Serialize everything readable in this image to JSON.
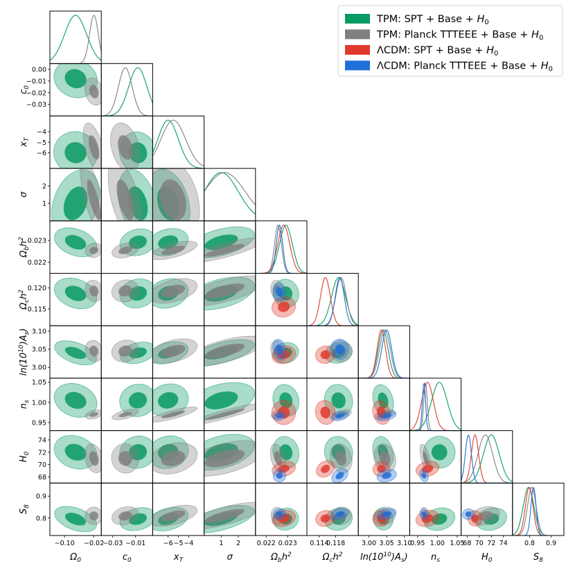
{
  "chart_data": {
    "type": "triangle",
    "description": "",
    "colors": {
      "tpm_spt": "#0a9a63",
      "tpm_planck": "#808080",
      "lcdm_spt": "#e03a2e",
      "lcdm_planck": "#1f6fd8"
    },
    "legend": [
      {
        "key": "tpm_spt",
        "label_plain": "TPM: SPT + Base + ",
        "label_sym": "H",
        "label_sub": "0"
      },
      {
        "key": "tpm_planck",
        "label_plain": "TPM: Planck TTTEEE + Base + ",
        "label_sym": "H",
        "label_sub": "0"
      },
      {
        "key": "lcdm_spt",
        "label_plain": "ΛCDM: SPT + Base + ",
        "label_sym": "H",
        "label_sub": "0"
      },
      {
        "key": "lcdm_planck",
        "label_plain": "ΛCDM: Planck TTTEEE + Base + ",
        "label_sym": "H",
        "label_sub": "0"
      }
    ],
    "parameters": [
      {
        "name": "Omega_0",
        "label_main": "Ω",
        "label_sub": "0",
        "label_sup": "",
        "label_tail": "",
        "range": [
          -0.14,
          0.0
        ],
        "ticks": [
          {
            "v": -0.1,
            "t": "−0.10"
          },
          {
            "v": -0.02,
            "t": "−0.02"
          }
        ],
        "ticks_y": [],
        "center": {
          "tpm_spt": -0.07,
          "tpm_planck": -0.02,
          "lcdm_spt": null,
          "lcdm_planck": null
        }
      },
      {
        "name": "c_0",
        "label_main": "c",
        "label_sub": "0",
        "label_sup": "",
        "label_tail": "",
        "range": [
          -0.04,
          0.005
        ],
        "ticks": [
          {
            "v": -0.03,
            "t": "−0.03"
          },
          {
            "v": -0.01,
            "t": "−0.01"
          }
        ],
        "ticks_y": [
          {
            "v": 0.0,
            "t": "0.00"
          },
          {
            "v": -0.01,
            "t": "−0.01"
          },
          {
            "v": -0.02,
            "t": "−0.02"
          },
          {
            "v": -0.03,
            "t": "−0.03"
          }
        ],
        "center": {
          "tpm_spt": -0.008,
          "tpm_planck": -0.019,
          "lcdm_spt": null,
          "lcdm_planck": null
        }
      },
      {
        "name": "x_T",
        "label_main": "x",
        "label_sub": "T",
        "label_sup": "",
        "label_tail": "",
        "range": [
          -7.5,
          -2.5
        ],
        "ticks": [
          {
            "v": -6,
            "t": "−6"
          },
          {
            "v": -5,
            "t": "−5"
          },
          {
            "v": -4,
            "t": "−4"
          }
        ],
        "ticks_y": [
          {
            "v": -4,
            "t": "−4"
          },
          {
            "v": -5,
            "t": "−5"
          },
          {
            "v": -6,
            "t": "−6"
          }
        ],
        "center": {
          "tpm_spt": -6.0,
          "tpm_planck": -5.5,
          "lcdm_spt": null,
          "lcdm_planck": null
        }
      },
      {
        "name": "sigma",
        "label_main": "σ",
        "label_sub": "",
        "label_sup": "",
        "label_tail": "",
        "range": [
          0.0,
          3.0
        ],
        "ticks": [
          {
            "v": 1,
            "t": "1"
          },
          {
            "v": 2,
            "t": "2"
          }
        ],
        "ticks_y": [
          {
            "v": 1,
            "t": "1"
          },
          {
            "v": 2,
            "t": "2"
          }
        ],
        "center": {
          "tpm_spt": 1.0,
          "tpm_planck": 1.2,
          "lcdm_spt": null,
          "lcdm_planck": null
        }
      },
      {
        "name": "omega_b",
        "label_main": "Ω",
        "label_sub": "b",
        "label_sup": "2",
        "label_tail": "h",
        "range": [
          0.0215,
          0.0239
        ],
        "ticks": [
          {
            "v": 0.022,
            "t": "0.022"
          },
          {
            "v": 0.023,
            "t": "0.023"
          }
        ],
        "ticks_y": [
          {
            "v": 0.023,
            "t": "0.023"
          },
          {
            "v": 0.022,
            "t": "0.022"
          }
        ],
        "center": {
          "tpm_spt": 0.02292,
          "tpm_planck": 0.02255,
          "lcdm_spt": 0.02282,
          "lcdm_planck": 0.02262
        }
      },
      {
        "name": "omega_c",
        "label_main": "Ω",
        "label_sub": "c",
        "label_sup": "2",
        "label_tail": "h",
        "range": [
          0.111,
          0.1235
        ],
        "ticks": [
          {
            "v": 0.114,
            "t": "0.114"
          },
          {
            "v": 0.118,
            "t": "0.118"
          }
        ],
        "ticks_y": [
          {
            "v": 0.12,
            "t": "0.120"
          },
          {
            "v": 0.115,
            "t": "0.115"
          }
        ],
        "center": {
          "tpm_spt": 0.1187,
          "tpm_planck": 0.1193,
          "lcdm_spt": 0.1155,
          "lcdm_planck": 0.119
        }
      },
      {
        "name": "ln10As",
        "label_main": "ln(10",
        "label_sub": "s",
        "label_sup": "10",
        "label_tail": "A",
        "range": [
          2.97,
          3.115
        ],
        "ticks": [
          {
            "v": 3.0,
            "t": "3.00"
          },
          {
            "v": 3.05,
            "t": "3.05"
          },
          {
            "v": 3.1,
            "t": "3.10"
          }
        ],
        "ticks_y": [
          {
            "v": 3.1,
            "t": "3.10"
          },
          {
            "v": 3.05,
            "t": "3.05"
          },
          {
            "v": 3.0,
            "t": "3.00"
          }
        ],
        "center": {
          "tpm_spt": 3.04,
          "tpm_planck": 3.045,
          "lcdm_spt": 3.035,
          "lcdm_planck": 3.05
        }
      },
      {
        "name": "n_s",
        "label_main": "n",
        "label_sub": "s",
        "label_sup": "",
        "label_tail": "",
        "range": [
          0.93,
          1.06
        ],
        "ticks": [
          {
            "v": 0.95,
            "t": "0.95"
          },
          {
            "v": 1.0,
            "t": "1.00"
          },
          {
            "v": 1.05,
            "t": "1.05"
          }
        ],
        "ticks_y": [
          {
            "v": 1.05,
            "t": "1.05"
          },
          {
            "v": 1.0,
            "t": "1.00"
          },
          {
            "v": 0.95,
            "t": "0.95"
          }
        ],
        "center": {
          "tpm_spt": 1.005,
          "tpm_planck": 0.97,
          "lcdm_spt": 0.975,
          "lcdm_planck": 0.966
        }
      },
      {
        "name": "H_0",
        "label_main": "H",
        "label_sub": "0",
        "label_sup": "",
        "label_tail": "",
        "range": [
          67.0,
          75.5
        ],
        "ticks": [
          {
            "v": 68,
            "t": "68"
          },
          {
            "v": 70,
            "t": "70"
          },
          {
            "v": 72,
            "t": "72"
          },
          {
            "v": 74,
            "t": "74"
          }
        ],
        "ticks_y": [
          {
            "v": 74,
            "t": "74"
          },
          {
            "v": 72,
            "t": "72"
          },
          {
            "v": 70,
            "t": "70"
          },
          {
            "v": 68,
            "t": "68"
          }
        ],
        "center": {
          "tpm_spt": 72.0,
          "tpm_planck": 71.0,
          "lcdm_spt": 69.3,
          "lcdm_planck": 68.2
        }
      },
      {
        "name": "S_8",
        "label_main": "S",
        "label_sub": "8",
        "label_sup": "",
        "label_tail": "",
        "range": [
          0.72,
          0.96
        ],
        "ticks": [
          {
            "v": 0.8,
            "t": "0.8"
          },
          {
            "v": 0.9,
            "t": "0.9"
          }
        ],
        "ticks_y": [
          {
            "v": 0.9,
            "t": "0.9"
          },
          {
            "v": 0.8,
            "t": "0.8"
          }
        ],
        "center": {
          "tpm_spt": 0.795,
          "tpm_planck": 0.81,
          "lcdm_spt": 0.798,
          "lcdm_planck": 0.818
        }
      }
    ],
    "sigma_1d": {
      "tpm_spt": [
        0.03,
        0.008,
        1.0,
        1.0,
        0.0003,
        0.0017,
        0.014,
        0.02,
        1.3,
        0.025
      ],
      "tpm_planck": [
        0.012,
        0.006,
        1.2,
        1.2,
        0.00016,
        0.0013,
        0.015,
        0.0045,
        1.2,
        0.02
      ],
      "lcdm_spt": [
        null,
        null,
        null,
        null,
        0.00028,
        0.0012,
        0.012,
        0.015,
        0.6,
        0.018
      ],
      "lcdm_planck": [
        null,
        null,
        null,
        null,
        0.00015,
        0.0011,
        0.014,
        0.004,
        0.5,
        0.012
      ]
    }
  }
}
